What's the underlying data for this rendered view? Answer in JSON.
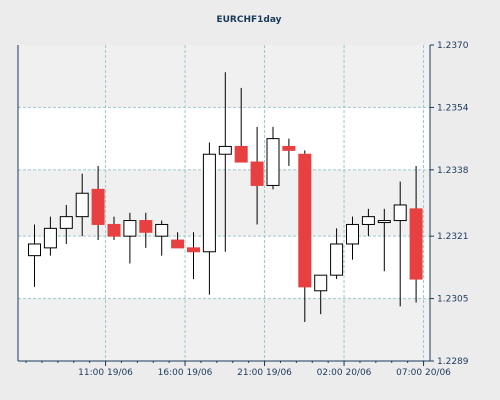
{
  "chart_data": {
    "type": "candlestick",
    "title": "EURCHF1day",
    "xlabel": "",
    "ylabel": "",
    "ylim": [
      1.2289,
      1.237
    ],
    "y_ticks": [
      "1.2370",
      "1.2354",
      "1.2338",
      "1.2321",
      "1.2305",
      "1.2289"
    ],
    "x_ticks": [
      {
        "label": "11:00 19/06",
        "index": 4.5
      },
      {
        "label": "16:00 19/06",
        "index": 9.5
      },
      {
        "label": "21:00 19/06",
        "index": 14.5
      },
      {
        "label": "02:00 20/06",
        "index": 19.5
      },
      {
        "label": "07:00 20/06",
        "index": 24.5
      }
    ],
    "grid": true,
    "colors": {
      "background": "#ececec",
      "plot_band_light": "#ffffff",
      "plot_band_dark": "#f0f0f0",
      "grid": "#9ac8d0",
      "axis": "#1a3a5a",
      "text": "#1a3a5a",
      "bull_fill": "#ffffff",
      "bear_fill": "#e84040",
      "wick": "#000000"
    },
    "candles": [
      {
        "open": 1.2316,
        "high": 1.2324,
        "low": 1.2308,
        "close": 1.2319
      },
      {
        "open": 1.2318,
        "high": 1.2326,
        "low": 1.2316,
        "close": 1.2323
      },
      {
        "open": 1.2323,
        "high": 1.2329,
        "low": 1.2319,
        "close": 1.2326
      },
      {
        "open": 1.2326,
        "high": 1.2337,
        "low": 1.2321,
        "close": 1.2332
      },
      {
        "open": 1.2333,
        "high": 1.2339,
        "low": 1.232,
        "close": 1.2324
      },
      {
        "open": 1.2324,
        "high": 1.2326,
        "low": 1.232,
        "close": 1.2321
      },
      {
        "open": 1.2321,
        "high": 1.2327,
        "low": 1.2314,
        "close": 1.2325
      },
      {
        "open": 1.2325,
        "high": 1.2327,
        "low": 1.2318,
        "close": 1.2322
      },
      {
        "open": 1.2321,
        "high": 1.2325,
        "low": 1.2316,
        "close": 1.2324
      },
      {
        "open": 1.232,
        "high": 1.2322,
        "low": 1.2318,
        "close": 1.2318
      },
      {
        "open": 1.2318,
        "high": 1.2322,
        "low": 1.231,
        "close": 1.2317
      },
      {
        "open": 1.2317,
        "high": 1.2345,
        "low": 1.2306,
        "close": 1.2342
      },
      {
        "open": 1.2342,
        "high": 1.2363,
        "low": 1.2317,
        "close": 1.2344
      },
      {
        "open": 1.2344,
        "high": 1.2359,
        "low": 1.234,
        "close": 1.234
      },
      {
        "open": 1.234,
        "high": 1.2349,
        "low": 1.2324,
        "close": 1.2334
      },
      {
        "open": 1.2334,
        "high": 1.2349,
        "low": 1.2333,
        "close": 1.2346
      },
      {
        "open": 1.2344,
        "high": 1.2346,
        "low": 1.2339,
        "close": 1.2343
      },
      {
        "open": 1.2342,
        "high": 1.2343,
        "low": 1.2299,
        "close": 1.2308
      },
      {
        "open": 1.2307,
        "high": 1.2311,
        "low": 1.2301,
        "close": 1.2311
      },
      {
        "open": 1.2311,
        "high": 1.2323,
        "low": 1.231,
        "close": 1.2319
      },
      {
        "open": 1.2319,
        "high": 1.2326,
        "low": 1.2315,
        "close": 1.2324
      },
      {
        "open": 1.2324,
        "high": 1.2328,
        "low": 1.2321,
        "close": 1.2326
      },
      {
        "open": 1.2325,
        "high": 1.2328,
        "low": 1.2312,
        "close": 1.2325
      },
      {
        "open": 1.2325,
        "high": 1.2335,
        "low": 1.2303,
        "close": 1.2329
      },
      {
        "open": 1.2328,
        "high": 1.2339,
        "low": 1.2304,
        "close": 1.231
      }
    ]
  }
}
